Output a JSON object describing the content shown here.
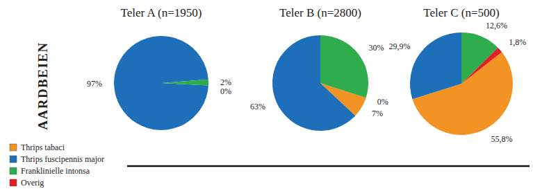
{
  "row_label": "AARDBEIEN",
  "chart_data": [
    {
      "type": "pie",
      "title": "Teler A (n=1950)",
      "categories": [
        "Thrips tabaci",
        "Thrips fuscipennis major",
        "Franklinielle intonsa",
        "Overig"
      ],
      "values": [
        null,
        97,
        2,
        0
      ],
      "value_labels": [
        null,
        "97%",
        "2%",
        "0%"
      ],
      "colors": [
        "#f39323",
        "#1e6fba",
        "#2fac4c",
        "#e31e25"
      ],
      "data_labels": true
    },
    {
      "type": "pie",
      "title": "Teler B (n=2800)",
      "categories": [
        "Thrips tabaci",
        "Thrips fuscipennis major",
        "Franklinielle intonsa",
        "Overig"
      ],
      "values": [
        7,
        63,
        30,
        0
      ],
      "value_labels": [
        "7%",
        "63%",
        "30%",
        "0%"
      ],
      "colors": [
        "#f39323",
        "#1e6fba",
        "#2fac4c",
        "#e31e25"
      ],
      "data_labels": true
    },
    {
      "type": "pie",
      "title": "Teler C (n=500)",
      "categories": [
        "Thrips tabaci",
        "Thrips fuscipennis major",
        "Franklinielle intonsa",
        "Overig"
      ],
      "values": [
        55.8,
        29.9,
        12.6,
        1.8
      ],
      "value_labels": [
        "55,8%",
        "29,9%",
        "12,6%",
        "1,8%"
      ],
      "colors": [
        "#f39323",
        "#1e6fba",
        "#2fac4c",
        "#e31e25"
      ],
      "data_labels": true,
      "legend": "lower left"
    }
  ]
}
